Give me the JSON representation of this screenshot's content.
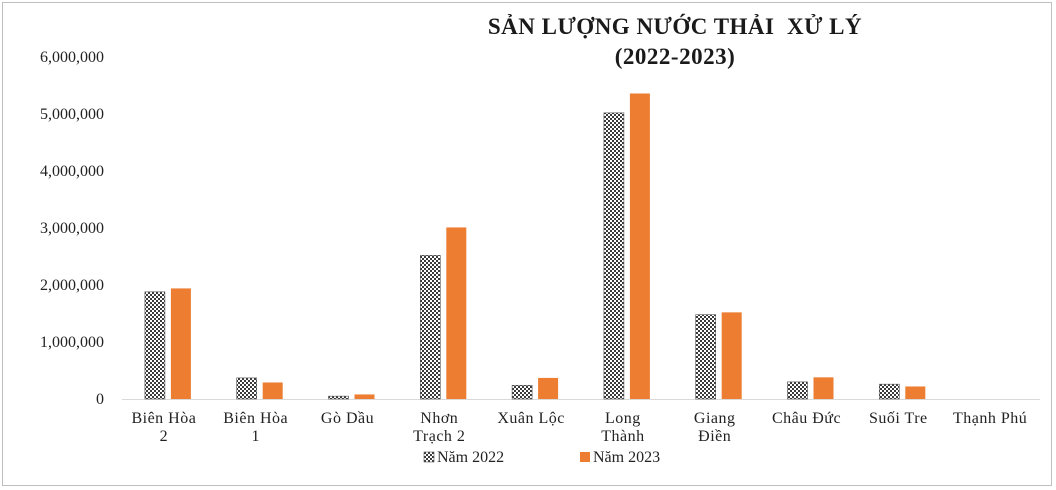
{
  "chart_data": {
    "type": "bar",
    "title": "SẢN LƯỢNG NƯỚC THẢI  XỬ LÝ",
    "subtitle": "(2022-2023)",
    "xlabel": "",
    "ylabel": "",
    "ylim": [
      0,
      6000000
    ],
    "yticks": [
      "0",
      "1,000,000",
      "2,000,000",
      "3,000,000",
      "4,000,000",
      "5,000,000",
      "6,000,000"
    ],
    "grid": false,
    "legend_position": "bottom",
    "categories": [
      [
        "Biên Hòa",
        "2"
      ],
      [
        "Biên Hòa",
        "1"
      ],
      [
        "Gò Dầu"
      ],
      [
        "Nhơn",
        "Trạch 2"
      ],
      [
        "Xuân Lộc"
      ],
      [
        "Long",
        "Thành"
      ],
      [
        "Giang",
        "Điền"
      ],
      [
        "Châu Đức"
      ],
      [
        "Suối Tre"
      ],
      [
        "Thạnh Phú"
      ]
    ],
    "series": [
      {
        "name": "Năm 2022",
        "pattern": "checkerboard",
        "color": "#4d4d4d",
        "values": [
          1880000,
          370000,
          50000,
          2520000,
          240000,
          5020000,
          1480000,
          300000,
          260000,
          0
        ]
      },
      {
        "name": "Năm 2023",
        "color": "#ed7d31",
        "values": [
          1940000,
          290000,
          80000,
          3010000,
          370000,
          5360000,
          1520000,
          380000,
          220000,
          0
        ]
      }
    ]
  }
}
